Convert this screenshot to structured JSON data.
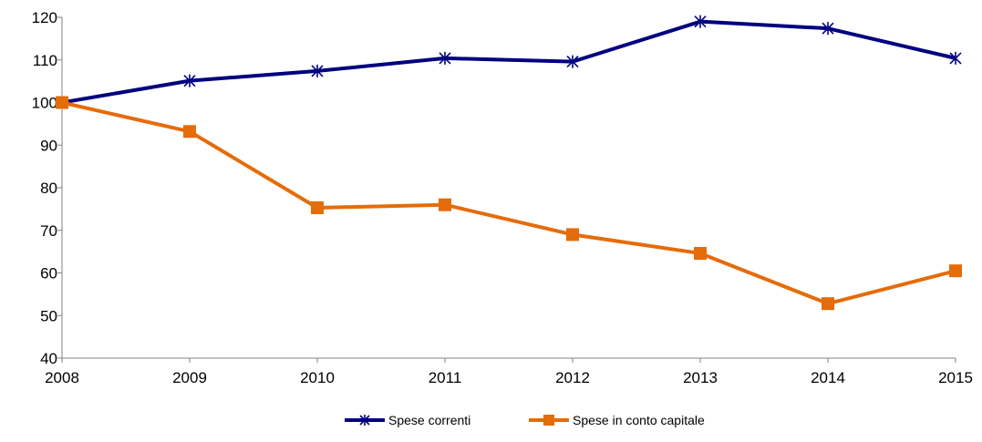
{
  "chart_data": {
    "type": "line",
    "x": [
      "2008",
      "2009",
      "2010",
      "2011",
      "2012",
      "2013",
      "2014",
      "2015"
    ],
    "yticks": [
      "40",
      "50",
      "60",
      "70",
      "80",
      "90",
      "100",
      "110",
      "120"
    ],
    "ylim": [
      40,
      120
    ],
    "grid": false,
    "legend_position": "bottom",
    "series": [
      {
        "name": "Spese correnti",
        "color": "#000080",
        "marker": "star",
        "values": [
          100,
          105.1,
          107.4,
          110.4,
          109.6,
          119.0,
          117.4,
          110.4
        ]
      },
      {
        "name": "Spese in conto capitale",
        "color": "#E46C0A",
        "marker": "square",
        "values": [
          100,
          93.2,
          75.3,
          76.0,
          69.0,
          64.6,
          52.8,
          60.5
        ]
      }
    ]
  }
}
